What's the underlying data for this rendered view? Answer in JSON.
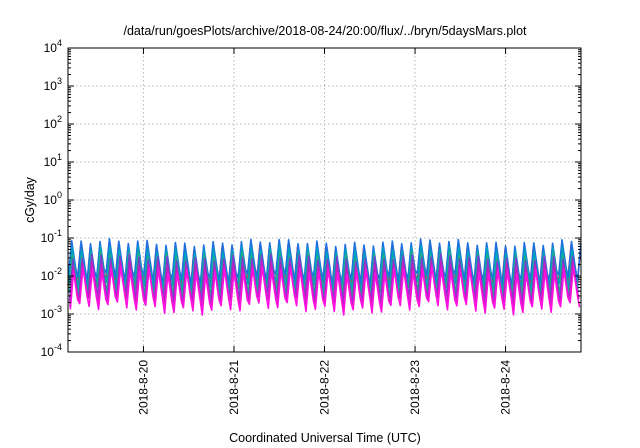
{
  "chart_data": {
    "type": "line",
    "title": "/data/run/goesPlots/archive/2018-08-24/20:00/flux/../bryn/5daysMars.plot",
    "xlabel": "Coordinated Universal Time (UTC)",
    "ylabel": "cGy/day",
    "yscale": "log",
    "ylim": [
      0.0001,
      10000
    ],
    "xlim": [
      "2018-08-19T04:00",
      "2018-08-24T20:00"
    ],
    "y_ticks": [
      {
        "base": "10",
        "exp": "-4"
      },
      {
        "base": "10",
        "exp": "-3"
      },
      {
        "base": "10",
        "exp": "-2"
      },
      {
        "base": "10",
        "exp": "-1"
      },
      {
        "base": "10",
        "exp": "0"
      },
      {
        "base": "10",
        "exp": "1"
      },
      {
        "base": "10",
        "exp": "2"
      },
      {
        "base": "10",
        "exp": "3"
      },
      {
        "base": "10",
        "exp": "4"
      }
    ],
    "x_ticks": [
      "2018-8-20",
      "2018-8-21",
      "2018-8-22",
      "2018-8-23",
      "2018-8-24"
    ],
    "grid": true,
    "oscillation_period_hours": 2.5,
    "series": [
      {
        "color": "#ff2020",
        "peak": 0.055,
        "trough": 0.0055
      },
      {
        "color": "#1e6fe0",
        "peak": 0.075,
        "trough": 0.008
      },
      {
        "color": "#00a0c0",
        "peak": 0.05,
        "trough": 0.005
      },
      {
        "color": "#20b080",
        "peak": 0.035,
        "trough": 0.0035
      },
      {
        "color": "#7b3fd0",
        "peak": 0.03,
        "trough": 0.0025
      },
      {
        "color": "#c020c0",
        "peak": 0.02,
        "trough": 0.0019
      },
      {
        "color": "#ff10e0",
        "peak": 0.014,
        "trough": 0.0014
      }
    ]
  }
}
